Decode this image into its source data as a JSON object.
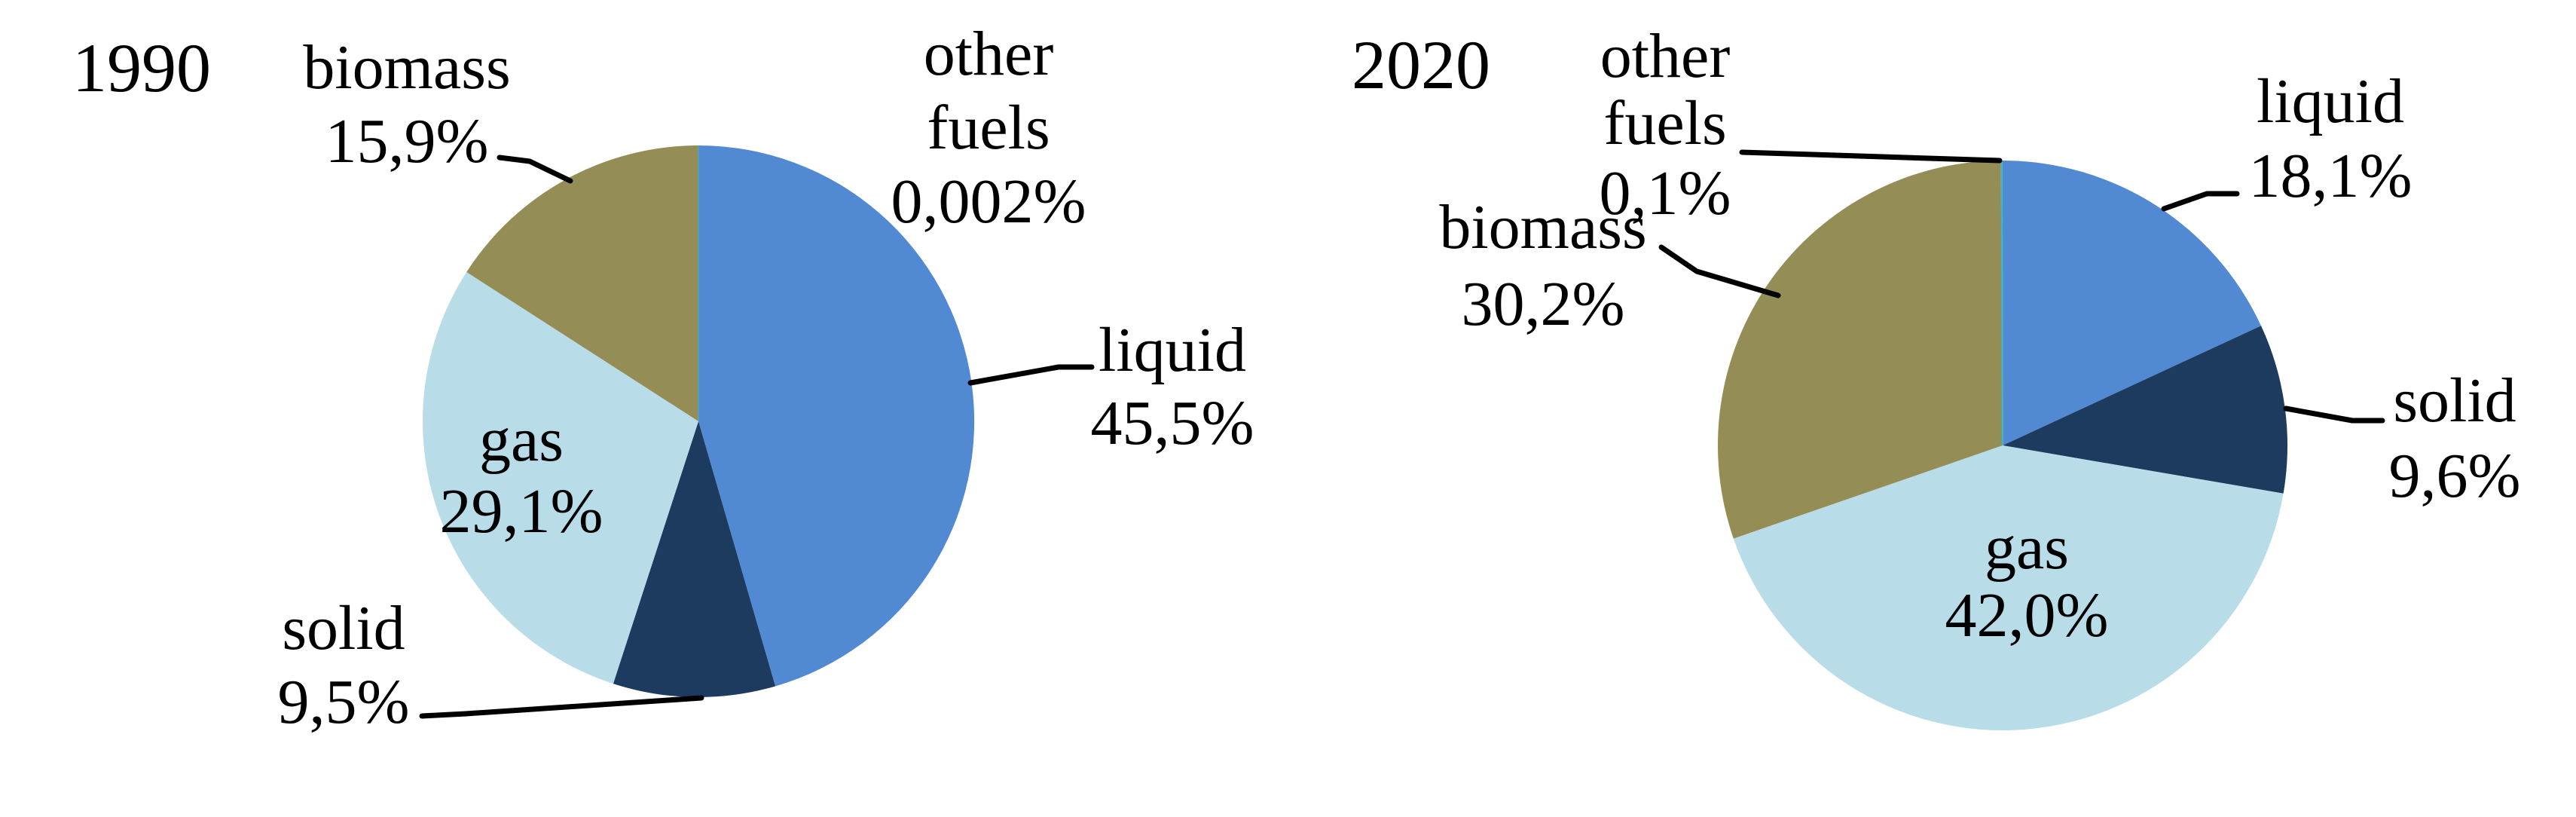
{
  "figure": {
    "description": "Two pie charts comparing fuel shares in 1990 and 2020",
    "background_color": "#FFFFFF",
    "text_color": "#000000",
    "leader_line_color": "#000000"
  },
  "chart_data": [
    {
      "type": "pie",
      "title": "1990",
      "categories": [
        "liquid",
        "solid",
        "gas",
        "biomass",
        "other fuels"
      ],
      "values": [
        45.5,
        9.5,
        29.1,
        15.9,
        0.002
      ],
      "value_labels": [
        "45,5%",
        "9,5%",
        "29,1%",
        "15,9%",
        "0,002%"
      ],
      "slice_labels": [
        {
          "lines": [
            "liquid",
            "45,5%"
          ]
        },
        {
          "lines": [
            "solid",
            "9,5%"
          ]
        },
        {
          "lines": [
            "gas",
            "29,1%"
          ]
        },
        {
          "lines": [
            "biomass",
            "15,9%"
          ]
        },
        {
          "lines": [
            "other",
            "fuels",
            "0,002%"
          ]
        }
      ],
      "colors": [
        "#5289D3",
        "#1D3A5F",
        "#B8DCE8",
        "#948D55",
        "#41B4C8"
      ],
      "start_angle_deg": 0,
      "direction": "clockwise",
      "legend": "none",
      "unit": "%"
    },
    {
      "type": "pie",
      "title": "2020",
      "categories": [
        "liquid",
        "solid",
        "gas",
        "biomass",
        "other fuels"
      ],
      "values": [
        18.1,
        9.6,
        42.0,
        30.2,
        0.1
      ],
      "value_labels": [
        "18,1%",
        "9,6%",
        "42,0%",
        "30,2%",
        "0,1%"
      ],
      "slice_labels": [
        {
          "lines": [
            "liquid",
            "18,1%"
          ]
        },
        {
          "lines": [
            "solid",
            "9,6%"
          ]
        },
        {
          "lines": [
            "gas",
            "42,0%"
          ]
        },
        {
          "lines": [
            "biomass",
            "30,2%"
          ]
        },
        {
          "lines": [
            "other",
            "fuels",
            "0,1%"
          ]
        }
      ],
      "colors": [
        "#5289D3",
        "#1D3A5F",
        "#B8DCE8",
        "#948D55",
        "#41B4C8"
      ],
      "start_angle_deg": 0,
      "direction": "clockwise",
      "legend": "none",
      "unit": "%"
    }
  ]
}
